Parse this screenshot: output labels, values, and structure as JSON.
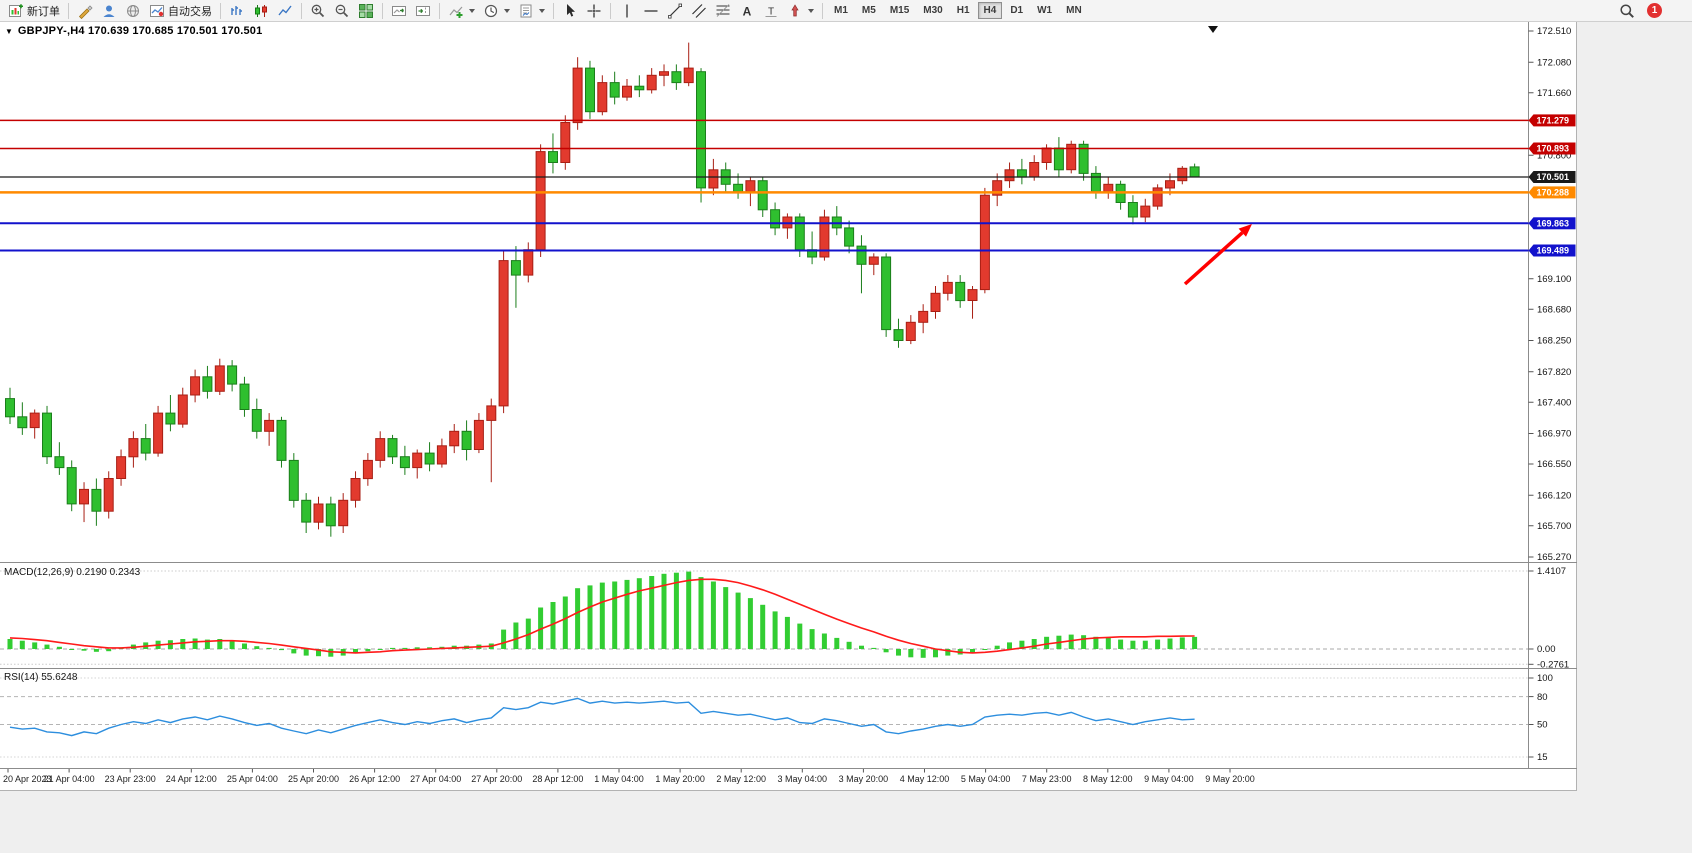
{
  "toolbar": {
    "items": [
      {
        "name": "new-order-button",
        "icon": "new-order-icon",
        "label": "新订单"
      },
      {
        "sep": true
      },
      {
        "name": "quotes-button",
        "icon": "quotes-icon"
      },
      {
        "name": "profile-button",
        "icon": "profile-icon"
      },
      {
        "name": "market-watch-button",
        "icon": "market-icon"
      },
      {
        "name": "autotrading-button",
        "icon": "autotrading-icon",
        "label": "自动交易"
      },
      {
        "sep": true
      },
      {
        "name": "bar-chart-button",
        "icon": "bar-chart-icon"
      },
      {
        "name": "candle-chart-button",
        "icon": "candle-chart-icon"
      },
      {
        "name": "line-chart-button",
        "icon": "line-chart-icon"
      },
      {
        "sep": true
      },
      {
        "name": "zoom-in-button",
        "icon": "zoom-in-icon"
      },
      {
        "name": "zoom-out-button",
        "icon": "zoom-out-icon"
      },
      {
        "name": "tile-windows-button",
        "icon": "tile-windows-icon"
      },
      {
        "sep": true
      },
      {
        "name": "auto-scroll-button",
        "icon": "autoscroll-icon"
      },
      {
        "name": "chart-shift-button",
        "icon": "chart-shift-icon"
      },
      {
        "sep": true
      },
      {
        "name": "indicators-button",
        "icon": "indicators-icon",
        "caret": true
      },
      {
        "name": "periods-button",
        "icon": "periods-icon",
        "caret": true
      },
      {
        "name": "templates-button",
        "icon": "template-icon",
        "caret": true
      },
      {
        "sep": true
      },
      {
        "name": "cursor-button",
        "icon": "cursor-icon"
      },
      {
        "name": "crosshair-button",
        "icon": "crosshair-icon"
      },
      {
        "sep": true
      },
      {
        "name": "vertical-line-button",
        "icon": "vline-icon"
      },
      {
        "name": "horizontal-line-button",
        "icon": "hline-icon"
      },
      {
        "name": "trendline-button",
        "icon": "trendline-icon"
      },
      {
        "name": "channel-button",
        "icon": "channel-icon"
      },
      {
        "name": "fibonacci-button",
        "icon": "fibonacci-icon"
      },
      {
        "name": "text-button",
        "icon": "text-icon"
      },
      {
        "name": "label-button",
        "icon": "label-icon"
      },
      {
        "name": "shapes-button",
        "icon": "shapes-icon",
        "caret": true
      },
      {
        "sep": true
      }
    ],
    "timeframes": [
      "M1",
      "M5",
      "M15",
      "M30",
      "H1",
      "H4",
      "D1",
      "W1",
      "MN"
    ],
    "active_timeframe": "H4",
    "notification_badge": "1"
  },
  "chart": {
    "title": "GBPJPY-,H4 170.639 170.685 170.501 170.501",
    "symbol": "GBPJPY-",
    "period": "H4",
    "open": "170.639",
    "high": "170.685",
    "low": "170.501",
    "close": "170.501"
  },
  "macd": {
    "label": "MACD(12,26,9) 0.2190 0.2343",
    "main_value": "0.2190",
    "signal_value": "0.2343"
  },
  "rsi": {
    "label": "RSI(14) 55.6248",
    "value": "55.6248"
  },
  "chart_data": {
    "type": "candlestick",
    "symbol": "GBPJPY",
    "timeframe": "H4",
    "up_color": "#e23a2e",
    "down_color": "#2fbf2f",
    "candles": [
      [
        167.45,
        167.6,
        167.1,
        167.2
      ],
      [
        167.2,
        167.4,
        166.95,
        167.05
      ],
      [
        167.05,
        167.3,
        166.9,
        167.25
      ],
      [
        167.25,
        167.35,
        166.55,
        166.65
      ],
      [
        166.65,
        166.85,
        166.4,
        166.5
      ],
      [
        166.5,
        166.6,
        165.9,
        166.0
      ],
      [
        166.0,
        166.3,
        165.75,
        166.2
      ],
      [
        166.2,
        166.35,
        165.7,
        165.9
      ],
      [
        165.9,
        166.45,
        165.8,
        166.35
      ],
      [
        166.35,
        166.75,
        166.25,
        166.65
      ],
      [
        166.65,
        167.0,
        166.5,
        166.9
      ],
      [
        166.9,
        167.1,
        166.6,
        166.7
      ],
      [
        166.7,
        167.35,
        166.65,
        167.25
      ],
      [
        167.25,
        167.5,
        167.0,
        167.1
      ],
      [
        167.1,
        167.6,
        167.05,
        167.5
      ],
      [
        167.5,
        167.85,
        167.4,
        167.75
      ],
      [
        167.75,
        167.9,
        167.45,
        167.55
      ],
      [
        167.55,
        168.0,
        167.5,
        167.9
      ],
      [
        167.9,
        167.98,
        167.55,
        167.65
      ],
      [
        167.65,
        167.75,
        167.2,
        167.3
      ],
      [
        167.3,
        167.45,
        166.9,
        167.0
      ],
      [
        167.0,
        167.25,
        166.8,
        167.15
      ],
      [
        167.15,
        167.2,
        166.5,
        166.6
      ],
      [
        166.6,
        166.7,
        165.95,
        166.05
      ],
      [
        166.05,
        166.15,
        165.6,
        165.75
      ],
      [
        165.75,
        166.1,
        165.65,
        166.0
      ],
      [
        166.0,
        166.1,
        165.55,
        165.7
      ],
      [
        165.7,
        166.15,
        165.6,
        166.05
      ],
      [
        166.05,
        166.45,
        165.95,
        166.35
      ],
      [
        166.35,
        166.7,
        166.25,
        166.6
      ],
      [
        166.6,
        167.0,
        166.5,
        166.9
      ],
      [
        166.9,
        166.95,
        166.55,
        166.65
      ],
      [
        166.65,
        166.8,
        166.4,
        166.5
      ],
      [
        166.5,
        166.75,
        166.35,
        166.7
      ],
      [
        166.7,
        166.85,
        166.45,
        166.55
      ],
      [
        166.55,
        166.9,
        166.5,
        166.8
      ],
      [
        166.8,
        167.1,
        166.7,
        167.0
      ],
      [
        167.0,
        167.15,
        166.6,
        166.75
      ],
      [
        166.75,
        167.25,
        166.7,
        167.15
      ],
      [
        167.15,
        167.45,
        166.3,
        167.35
      ],
      [
        167.35,
        169.5,
        167.25,
        169.35
      ],
      [
        169.35,
        169.55,
        168.7,
        169.15
      ],
      [
        169.15,
        169.6,
        169.05,
        169.5
      ],
      [
        169.5,
        170.95,
        169.4,
        170.85
      ],
      [
        170.85,
        171.1,
        170.55,
        170.7
      ],
      [
        170.7,
        171.35,
        170.6,
        171.25
      ],
      [
        171.25,
        172.15,
        171.15,
        172.0
      ],
      [
        172.0,
        172.1,
        171.3,
        171.4
      ],
      [
        171.4,
        171.9,
        171.35,
        171.8
      ],
      [
        171.8,
        171.95,
        171.5,
        171.6
      ],
      [
        171.6,
        171.85,
        171.55,
        171.75
      ],
      [
        171.75,
        171.9,
        171.6,
        171.7
      ],
      [
        171.7,
        172.0,
        171.65,
        171.9
      ],
      [
        171.9,
        172.05,
        171.75,
        171.95
      ],
      [
        171.95,
        172.05,
        171.7,
        171.8
      ],
      [
        171.8,
        172.35,
        171.75,
        172.0
      ],
      [
        171.95,
        172.0,
        170.15,
        170.35
      ],
      [
        170.35,
        170.75,
        170.25,
        170.6
      ],
      [
        170.6,
        170.7,
        170.3,
        170.4
      ],
      [
        170.4,
        170.55,
        170.2,
        170.3
      ],
      [
        170.3,
        170.5,
        170.1,
        170.45
      ],
      [
        170.45,
        170.5,
        169.95,
        170.05
      ],
      [
        170.05,
        170.15,
        169.7,
        169.8
      ],
      [
        169.8,
        170.0,
        169.65,
        169.95
      ],
      [
        169.95,
        170.0,
        169.4,
        169.5
      ],
      [
        169.5,
        169.75,
        169.3,
        169.4
      ],
      [
        169.4,
        170.05,
        169.35,
        169.95
      ],
      [
        169.95,
        170.1,
        169.7,
        169.8
      ],
      [
        169.8,
        169.9,
        169.45,
        169.55
      ],
      [
        169.55,
        169.7,
        168.9,
        169.3
      ],
      [
        169.3,
        169.45,
        169.15,
        169.4
      ],
      [
        169.4,
        169.45,
        168.3,
        168.4
      ],
      [
        168.4,
        168.55,
        168.15,
        168.25
      ],
      [
        168.25,
        168.6,
        168.2,
        168.5
      ],
      [
        168.5,
        168.75,
        168.35,
        168.65
      ],
      [
        168.65,
        169.0,
        168.55,
        168.9
      ],
      [
        168.9,
        169.15,
        168.8,
        169.05
      ],
      [
        169.05,
        169.15,
        168.7,
        168.8
      ],
      [
        168.8,
        169.0,
        168.55,
        168.95
      ],
      [
        168.95,
        170.35,
        168.9,
        170.25
      ],
      [
        170.25,
        170.55,
        170.1,
        170.45
      ],
      [
        170.45,
        170.7,
        170.35,
        170.6
      ],
      [
        170.6,
        170.75,
        170.4,
        170.5
      ],
      [
        170.5,
        170.8,
        170.45,
        170.7
      ],
      [
        170.7,
        170.95,
        170.6,
        170.9
      ],
      [
        170.9,
        171.05,
        170.5,
        170.6
      ],
      [
        170.6,
        171.0,
        170.55,
        170.95
      ],
      [
        170.95,
        171.0,
        170.45,
        170.55
      ],
      [
        170.55,
        170.65,
        170.2,
        170.3
      ],
      [
        170.3,
        170.5,
        170.2,
        170.4
      ],
      [
        170.4,
        170.45,
        170.05,
        170.15
      ],
      [
        170.15,
        170.25,
        169.85,
        169.95
      ],
      [
        169.95,
        170.2,
        169.88,
        170.1
      ],
      [
        170.1,
        170.4,
        170.05,
        170.35
      ],
      [
        170.35,
        170.55,
        170.25,
        170.45
      ],
      [
        170.45,
        170.65,
        170.4,
        170.62
      ],
      [
        170.639,
        170.685,
        170.501,
        170.501
      ]
    ],
    "time_labels": [
      "20 Apr 2023",
      "21 Apr 04:00",
      "23 Apr 23:00",
      "24 Apr 12:00",
      "25 Apr 04:00",
      "25 Apr 20:00",
      "26 Apr 12:00",
      "27 Apr 04:00",
      "27 Apr 20:00",
      "28 Apr 12:00",
      "1 May 04:00",
      "1 May 20:00",
      "2 May 12:00",
      "3 May 04:00",
      "3 May 20:00",
      "4 May 12:00",
      "5 May 04:00",
      "7 May 23:00",
      "8 May 12:00",
      "9 May 04:00",
      "9 May 20:00"
    ],
    "price_ticks": [
      {
        "value": 172.51,
        "label": "172.510"
      },
      {
        "value": 172.08,
        "label": "172.080"
      },
      {
        "value": 171.66,
        "label": "171.660"
      },
      {
        "value": 170.8,
        "label": "170.800"
      },
      {
        "value": 169.1,
        "label": "169.100"
      },
      {
        "value": 168.68,
        "label": "168.680"
      },
      {
        "value": 168.25,
        "label": "168.250"
      },
      {
        "value": 167.82,
        "label": "167.820"
      },
      {
        "value": 167.4,
        "label": "167.400"
      },
      {
        "value": 166.97,
        "label": "166.970"
      },
      {
        "value": 166.55,
        "label": "166.550"
      },
      {
        "value": 166.12,
        "label": "166.120"
      },
      {
        "value": 165.7,
        "label": "165.700"
      },
      {
        "value": 165.27,
        "label": "165.270"
      }
    ],
    "hlines": [
      {
        "price": 171.279,
        "label": "171.279",
        "color": "#c40000",
        "width": 1.5
      },
      {
        "price": 170.893,
        "label": "170.893",
        "color": "#c40000",
        "width": 1.5
      },
      {
        "price": 170.501,
        "label": "170.501",
        "color": "#1a1a1a",
        "width": 1.2
      },
      {
        "price": 170.288,
        "label": "170.288",
        "color": "#ff8a00",
        "width": 2.5
      },
      {
        "price": 169.863,
        "label": "169.863",
        "color": "#1212cc",
        "width": 2
      },
      {
        "price": 169.489,
        "label": "169.489",
        "color": "#1212cc",
        "width": 2
      }
    ],
    "macd": {
      "histogram_color": "#32cd32",
      "signal_color": "#ff1a1a",
      "histogram": [
        0.18,
        0.15,
        0.12,
        0.08,
        0.04,
        0.0,
        -0.03,
        -0.05,
        -0.04,
        0.02,
        0.08,
        0.12,
        0.15,
        0.16,
        0.18,
        0.19,
        0.17,
        0.18,
        0.15,
        0.1,
        0.05,
        0.02,
        -0.02,
        -0.08,
        -0.12,
        -0.13,
        -0.14,
        -0.12,
        -0.08,
        -0.04,
        0.0,
        0.02,
        0.02,
        0.03,
        0.03,
        0.04,
        0.06,
        0.06,
        0.08,
        0.1,
        0.35,
        0.48,
        0.55,
        0.75,
        0.85,
        0.95,
        1.1,
        1.15,
        1.2,
        1.22,
        1.25,
        1.28,
        1.32,
        1.36,
        1.38,
        1.4,
        1.3,
        1.22,
        1.12,
        1.02,
        0.92,
        0.8,
        0.68,
        0.58,
        0.46,
        0.36,
        0.28,
        0.2,
        0.13,
        0.06,
        0.02,
        -0.06,
        -0.12,
        -0.15,
        -0.16,
        -0.15,
        -0.12,
        -0.1,
        -0.08,
        0.0,
        0.06,
        0.12,
        0.15,
        0.18,
        0.22,
        0.24,
        0.26,
        0.25,
        0.22,
        0.2,
        0.17,
        0.15,
        0.15,
        0.17,
        0.19,
        0.21,
        0.219
      ],
      "signal": [
        0.2,
        0.19,
        0.17,
        0.15,
        0.12,
        0.09,
        0.06,
        0.04,
        0.02,
        0.02,
        0.03,
        0.05,
        0.07,
        0.09,
        0.11,
        0.13,
        0.14,
        0.15,
        0.15,
        0.14,
        0.12,
        0.1,
        0.07,
        0.04,
        0.01,
        -0.02,
        -0.05,
        -0.06,
        -0.07,
        -0.06,
        -0.05,
        -0.03,
        -0.02,
        -0.01,
        0.0,
        0.01,
        0.02,
        0.03,
        0.04,
        0.05,
        0.11,
        0.18,
        0.26,
        0.36,
        0.45,
        0.55,
        0.66,
        0.76,
        0.85,
        0.92,
        0.99,
        1.05,
        1.1,
        1.15,
        1.2,
        1.24,
        1.26,
        1.26,
        1.24,
        1.2,
        1.14,
        1.07,
        0.99,
        0.9,
        0.81,
        0.72,
        0.63,
        0.54,
        0.46,
        0.38,
        0.31,
        0.23,
        0.16,
        0.1,
        0.05,
        0.0,
        -0.03,
        -0.06,
        -0.07,
        -0.06,
        -0.04,
        -0.01,
        0.02,
        0.05,
        0.09,
        0.12,
        0.15,
        0.18,
        0.2,
        0.21,
        0.22,
        0.22,
        0.22,
        0.23,
        0.23,
        0.234,
        0.2343
      ],
      "axis_labels": [
        {
          "value": 1.4107,
          "label": "1.4107"
        },
        {
          "value": 0,
          "label": "0.00"
        },
        {
          "value": -0.2761,
          "label": "-0.2761"
        }
      ]
    },
    "rsi": {
      "line_color": "#2d8ede",
      "values": [
        47,
        45,
        46,
        42,
        41,
        38,
        42,
        40,
        46,
        50,
        53,
        51,
        55,
        52,
        56,
        58,
        55,
        59,
        56,
        52,
        49,
        51,
        46,
        43,
        40,
        44,
        41,
        45,
        49,
        52,
        55,
        52,
        50,
        53,
        51,
        54,
        56,
        52,
        55,
        57,
        68,
        66,
        68,
        74,
        72,
        75,
        78,
        73,
        75,
        73,
        74,
        73,
        74,
        75,
        73,
        74,
        62,
        64,
        62,
        60,
        61,
        58,
        55,
        57,
        52,
        51,
        56,
        54,
        51,
        48,
        50,
        42,
        40,
        43,
        45,
        48,
        50,
        48,
        50,
        58,
        60,
        61,
        60,
        62,
        63,
        60,
        63,
        58,
        54,
        56,
        53,
        50,
        53,
        55,
        57,
        55,
        55.62
      ],
      "axis_labels": [
        {
          "value": 100,
          "label": "100"
        },
        {
          "value": 80,
          "label": "80"
        },
        {
          "value": 50,
          "label": "50"
        },
        {
          "value": 15,
          "label": "15"
        }
      ],
      "levels": [
        80,
        50
      ]
    },
    "arrow": {
      "from": [
        1185,
        262
      ],
      "to": [
        1252,
        202
      ],
      "color": "#ff0000"
    }
  }
}
